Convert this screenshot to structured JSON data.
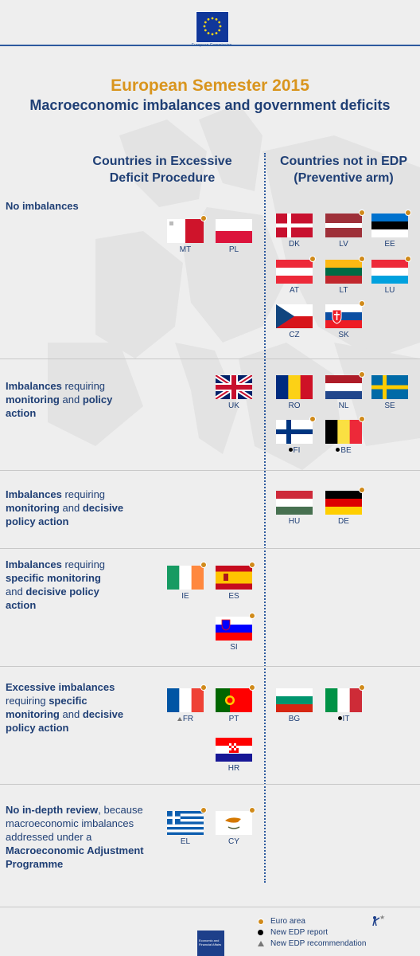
{
  "header": {
    "org_name": "European Commission",
    "title": "European Semester 2015",
    "subtitle": "Macroeconomic imbalances and government deficits"
  },
  "columns": {
    "left": "Countries in Excessive Deficit Procedure",
    "right": "Countries not in EDP (Preventive arm)"
  },
  "rows": [
    {
      "label_parts": [
        {
          "t": "No imbalances",
          "b": true
        }
      ]
    },
    {
      "label_parts": [
        {
          "t": "Imbalances",
          "b": true
        },
        {
          "t": " requiring ",
          "b": false
        },
        {
          "t": "monitoring",
          "b": true
        },
        {
          "t": " and ",
          "b": false
        },
        {
          "t": "policy action",
          "b": true
        }
      ]
    },
    {
      "label_parts": [
        {
          "t": "Imbalances",
          "b": true
        },
        {
          "t": " requiring ",
          "b": false
        },
        {
          "t": "monitoring",
          "b": true
        },
        {
          "t": " and ",
          "b": false
        },
        {
          "t": "decisive policy action",
          "b": true
        }
      ]
    },
    {
      "label_parts": [
        {
          "t": "Imbalances",
          "b": true
        },
        {
          "t": " requiring ",
          "b": false
        },
        {
          "t": "specific monitoring",
          "b": true
        },
        {
          "t": " and ",
          "b": false
        },
        {
          "t": "decisive policy action",
          "b": true
        }
      ]
    },
    {
      "label_parts": [
        {
          "t": "Excessive imbalances",
          "b": true
        },
        {
          "t": " requiring ",
          "b": false
        },
        {
          "t": "specific monitoring",
          "b": true
        },
        {
          "t": " and ",
          "b": false
        },
        {
          "t": "decisive policy action",
          "b": true
        }
      ]
    },
    {
      "label_parts": [
        {
          "t": "No in-depth review",
          "b": true
        },
        {
          "t": ", because macroeconomic imbalances addressed under a ",
          "b": false
        },
        {
          "t": "Macroeconomic Adjustment Programme",
          "b": true
        }
      ]
    }
  ],
  "countries": {
    "MT": {
      "code": "MT",
      "euro": true,
      "mark": ""
    },
    "PL": {
      "code": "PL",
      "euro": false,
      "mark": ""
    },
    "DK": {
      "code": "DK",
      "euro": false,
      "mark": ""
    },
    "LV": {
      "code": "LV",
      "euro": true,
      "mark": ""
    },
    "EE": {
      "code": "EE",
      "euro": true,
      "mark": ""
    },
    "AT": {
      "code": "AT",
      "euro": true,
      "mark": ""
    },
    "LT": {
      "code": "LT",
      "euro": true,
      "mark": ""
    },
    "LU": {
      "code": "LU",
      "euro": true,
      "mark": ""
    },
    "CZ": {
      "code": "CZ",
      "euro": false,
      "mark": ""
    },
    "SK": {
      "code": "SK",
      "euro": true,
      "mark": ""
    },
    "UK": {
      "code": "UK",
      "euro": false,
      "mark": ""
    },
    "RO": {
      "code": "RO",
      "euro": false,
      "mark": ""
    },
    "NL": {
      "code": "NL",
      "euro": true,
      "mark": ""
    },
    "SE": {
      "code": "SE",
      "euro": false,
      "mark": ""
    },
    "FI": {
      "code": "FI",
      "euro": true,
      "mark": "dot"
    },
    "BE": {
      "code": "BE",
      "euro": true,
      "mark": "dot"
    },
    "HU": {
      "code": "HU",
      "euro": false,
      "mark": ""
    },
    "DE": {
      "code": "DE",
      "euro": true,
      "mark": ""
    },
    "IE": {
      "code": "IE",
      "euro": true,
      "mark": ""
    },
    "ES": {
      "code": "ES",
      "euro": true,
      "mark": ""
    },
    "SI": {
      "code": "SI",
      "euro": true,
      "mark": ""
    },
    "FR": {
      "code": "FR",
      "euro": true,
      "mark": "triangle"
    },
    "PT": {
      "code": "PT",
      "euro": true,
      "mark": ""
    },
    "BG": {
      "code": "BG",
      "euro": false,
      "mark": ""
    },
    "IT": {
      "code": "IT",
      "euro": true,
      "mark": "dot"
    },
    "HR": {
      "code": "HR",
      "euro": false,
      "mark": ""
    },
    "EL": {
      "code": "EL",
      "euro": true,
      "mark": ""
    },
    "CY": {
      "code": "CY",
      "euro": true,
      "mark": ""
    }
  },
  "legend": {
    "euro_area": "Euro area",
    "new_edp_report": "New EDP report",
    "new_edp_recommendation": "New EDP recommendation"
  },
  "footer": {
    "dg_name": "Economic and Financial Affairs"
  },
  "colors": {
    "title_accent": "#d9951e",
    "text_primary": "#1f3f75",
    "euro_marker": "#d08a1a",
    "background": "#eeeeee"
  }
}
